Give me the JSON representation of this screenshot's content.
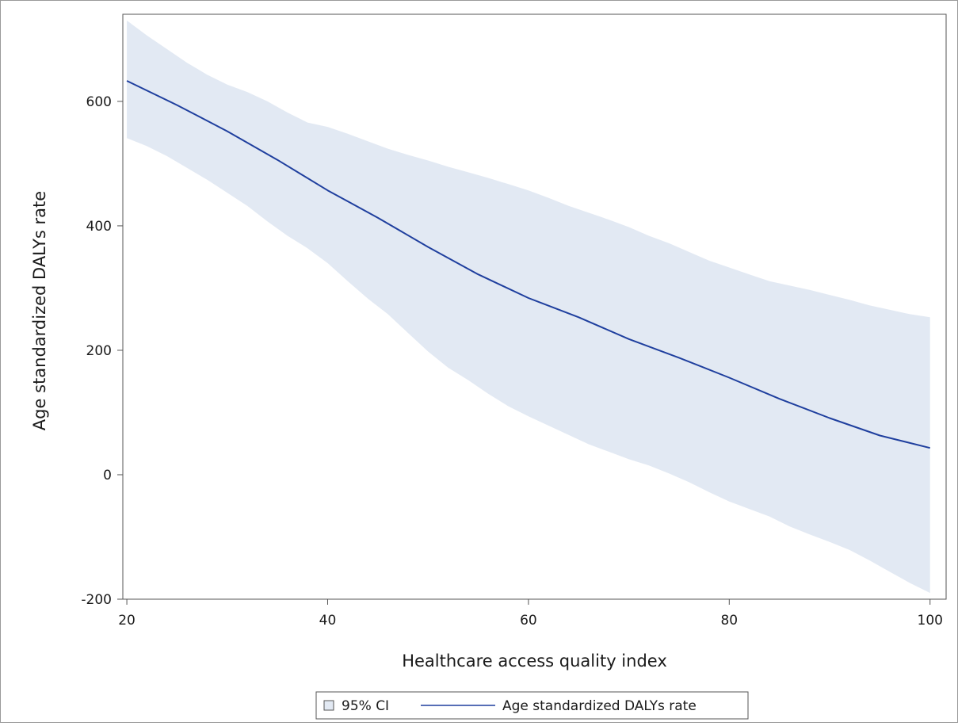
{
  "chart_data": {
    "type": "line",
    "title": "",
    "xlabel": "Healthcare access quality index",
    "ylabel": "Age standardized DALYs rate",
    "xlim": [
      19.6,
      101.6
    ],
    "ylim": [
      -200,
      740
    ],
    "x_ticks": [
      20,
      40,
      60,
      80,
      100
    ],
    "y_ticks": [
      -200,
      0,
      200,
      400,
      600
    ],
    "grid": false,
    "legend_position": "bottom",
    "band": {
      "name": "95% CI",
      "color": "#e2e9f3",
      "x": [
        20,
        22,
        24,
        26,
        28,
        30,
        32,
        34,
        36,
        38,
        40,
        42,
        44,
        46,
        48,
        50,
        52,
        54,
        56,
        58,
        60,
        62,
        64,
        66,
        68,
        70,
        72,
        74,
        76,
        78,
        80,
        82,
        84,
        86,
        88,
        90,
        92,
        94,
        96,
        98,
        100
      ],
      "upper": [
        730,
        706,
        684,
        662,
        643,
        627,
        615,
        600,
        582,
        566,
        559,
        548,
        536,
        524,
        514,
        505,
        495,
        486,
        477,
        467,
        457,
        445,
        432,
        421,
        410,
        398,
        384,
        372,
        358,
        344,
        333,
        322,
        311,
        304,
        297,
        289,
        281,
        272,
        265,
        258,
        253
      ],
      "lower": [
        541,
        528,
        512,
        493,
        474,
        453,
        432,
        407,
        384,
        364,
        340,
        311,
        283,
        258,
        228,
        198,
        172,
        152,
        130,
        110,
        94,
        79,
        64,
        49,
        37,
        25,
        15,
        2,
        -12,
        -28,
        -43,
        -55,
        -67,
        -83,
        -96,
        -108,
        -121,
        -138,
        -156,
        -174,
        -190
      ]
    },
    "series": [
      {
        "name": "Age standardized DALYs rate",
        "color": "#1f3f9e",
        "x": [
          20,
          25,
          30,
          35,
          40,
          45,
          50,
          55,
          60,
          65,
          70,
          75,
          80,
          85,
          90,
          95,
          100
        ],
        "values": [
          633,
          594,
          552,
          506,
          457,
          413,
          366,
          322,
          284,
          253,
          218,
          188,
          156,
          122,
          91,
          63,
          43
        ]
      }
    ]
  }
}
